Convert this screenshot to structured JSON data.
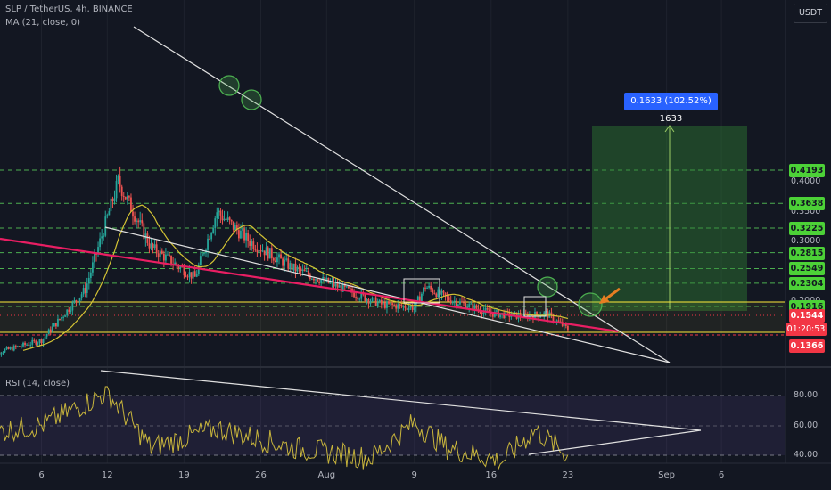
{
  "header": {
    "symbol_title": "SLP / TetherUS, 4h, BINANCE",
    "ma_legend": "MA (21, close, 0)",
    "rsi_legend": "RSI (14, close)",
    "currency": "USDT"
  },
  "measure_label": "0.1633 (102.52%) 1633",
  "current_price": "0.1544",
  "countdown": "01:20:53",
  "colors": {
    "background": "#131722",
    "candle_up": "#26a69a",
    "candle_down": "#ef5350",
    "ma_line": "#d4c434",
    "level_line": "#4caf50",
    "level_tag": "#4cd137",
    "support_band": "#ffeb3b",
    "trend_pink": "#e91e63",
    "target_box": "#2e7d32",
    "rsi_line": "#c8b53c",
    "rsi_band": "#7e57c2",
    "last_price": "#f23645"
  },
  "chart_data": [
    {
      "type": "candlestick",
      "title": "SLP / TetherUS, 4h, BINANCE",
      "x_ticks": [
        "6",
        "12",
        "19",
        "26",
        "Aug",
        "9",
        "16",
        "23",
        "Sep",
        "6"
      ],
      "y_ticks": [
        "0.4000",
        "0.3500",
        "0.3000",
        "0.2000"
      ],
      "price_levels": [
        "0.4193",
        "0.3638",
        "0.3225",
        "0.2815",
        "0.2549",
        "0.2304",
        "0.1916"
      ],
      "highlighted_levels": [
        "0.1544",
        "0.1366"
      ],
      "approx_close_path": [
        {
          "x": "Jul 1",
          "y": 0.11
        },
        {
          "x": "Jul 6",
          "y": 0.135
        },
        {
          "x": "Jul 10",
          "y": 0.22
        },
        {
          "x": "Jul 13",
          "y": 0.4
        },
        {
          "x": "Jul 16",
          "y": 0.29
        },
        {
          "x": "Jul 20",
          "y": 0.24
        },
        {
          "x": "Jul 22",
          "y": 0.35
        },
        {
          "x": "Jul 25",
          "y": 0.3
        },
        {
          "x": "Jul 29",
          "y": 0.255
        },
        {
          "x": "Aug 2",
          "y": 0.225
        },
        {
          "x": "Aug 6",
          "y": 0.195
        },
        {
          "x": "Aug 9",
          "y": 0.19
        },
        {
          "x": "Aug 10",
          "y": 0.225
        },
        {
          "x": "Aug 12",
          "y": 0.205
        },
        {
          "x": "Aug 16",
          "y": 0.18
        },
        {
          "x": "Aug 19",
          "y": 0.175
        },
        {
          "x": "Aug 21",
          "y": 0.18
        },
        {
          "x": "Aug 23",
          "y": 0.154
        }
      ],
      "target_move": "0.1633 (102.52%) 1633"
    },
    {
      "type": "line",
      "title": "RSI (14, close)",
      "y_ticks": [
        "80.00",
        "60.00",
        "40.00"
      ],
      "ylim": [
        25,
        90
      ],
      "approx_values": [
        {
          "x": "Jul 1",
          "y": 55
        },
        {
          "x": "Jul 6",
          "y": 60
        },
        {
          "x": "Jul 12",
          "y": 82
        },
        {
          "x": "Jul 16",
          "y": 45
        },
        {
          "x": "Jul 22",
          "y": 58
        },
        {
          "x": "Jul 29",
          "y": 45
        },
        {
          "x": "Aug 5",
          "y": 38
        },
        {
          "x": "Aug 9",
          "y": 62
        },
        {
          "x": "Aug 12",
          "y": 45
        },
        {
          "x": "Aug 17",
          "y": 36
        },
        {
          "x": "Aug 20",
          "y": 57
        },
        {
          "x": "Aug 23",
          "y": 40
        }
      ]
    }
  ]
}
